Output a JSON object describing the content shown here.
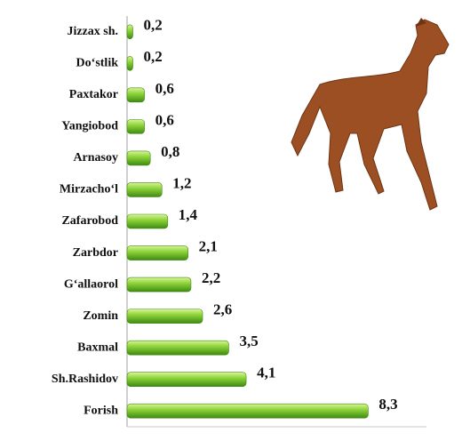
{
  "chart_data": {
    "type": "bar",
    "orientation": "horizontal",
    "categories": [
      "Jizzax sh.",
      "Do‘stlik",
      "Paxtakor",
      "Yangiobod",
      "Arnasoy",
      "Mirzacho‘l",
      "Zafarobod",
      "Zarbdor",
      "G‘allaorol",
      "Zomin",
      "Baxmal",
      "Sh.Rashidov",
      "Forish"
    ],
    "values": [
      0.2,
      0.2,
      0.6,
      0.6,
      0.8,
      1.2,
      1.4,
      2.1,
      2.2,
      2.6,
      3.5,
      4.1,
      8.3
    ],
    "value_labels": [
      "0,2",
      "0,2",
      "0,6",
      "0,6",
      "0,8",
      "1,2",
      "1,4",
      "2,1",
      "2,2",
      "2,6",
      "3,5",
      "4,1",
      "8,3"
    ],
    "color": "#7cc828",
    "xlim": [
      0,
      10
    ]
  }
}
